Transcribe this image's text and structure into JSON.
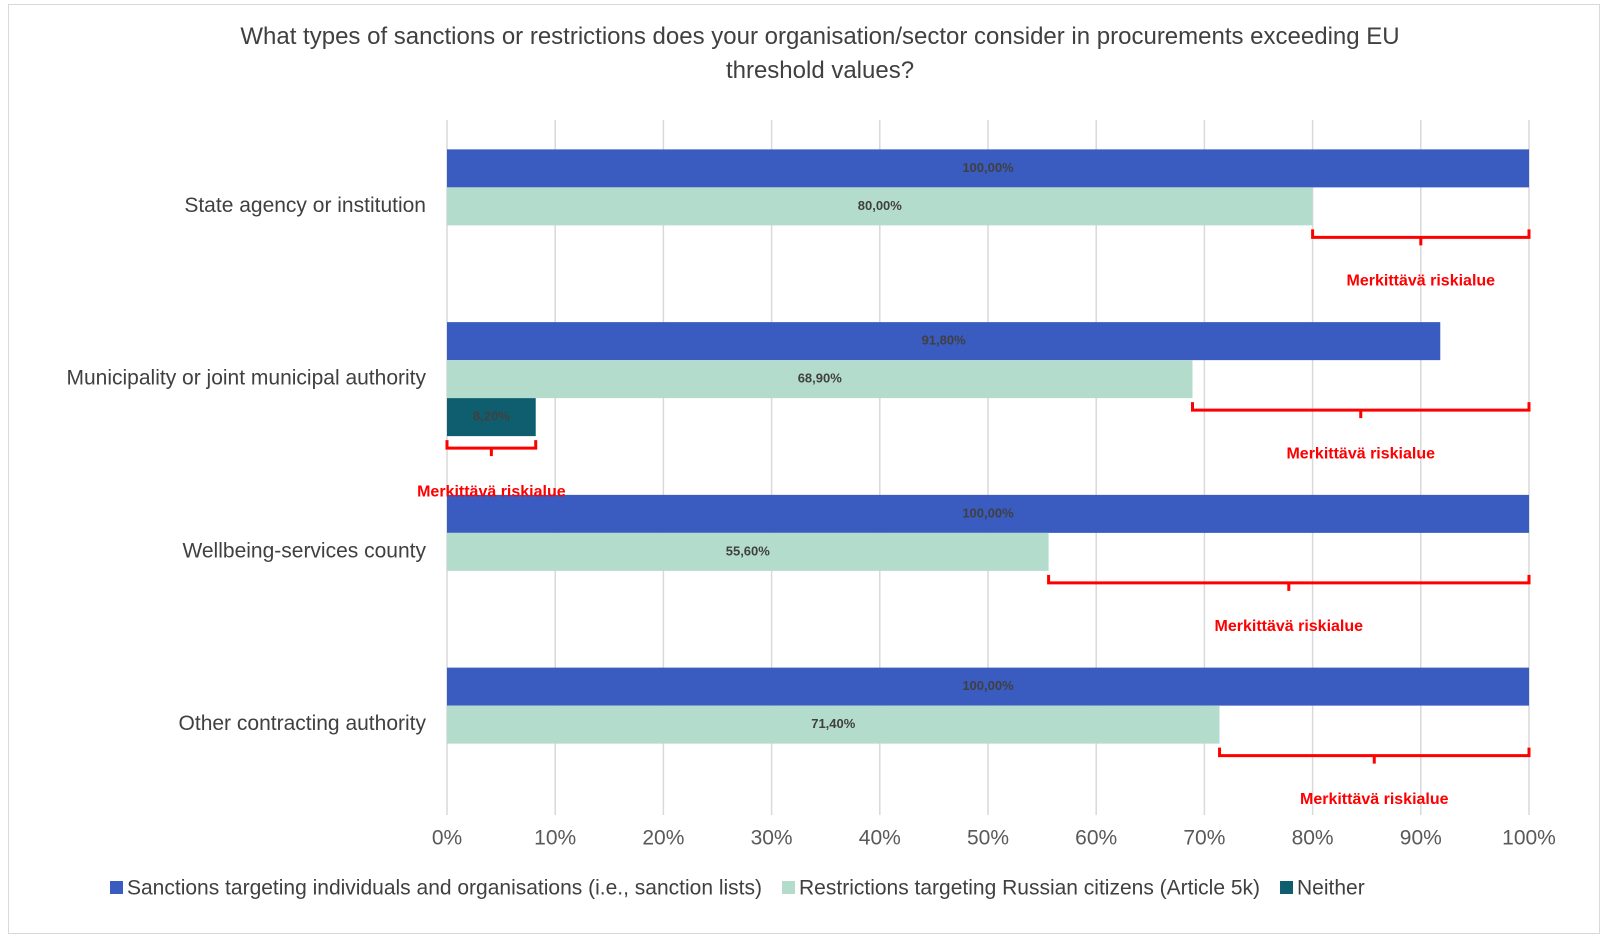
{
  "chart_data": {
    "type": "hbar",
    "title": "What types of sanctions or restrictions does your organisation/sector consider in procurements exceeding EU threshold values?",
    "categories": [
      "State agency or institution",
      "Municipality or joint municipal authority",
      "Wellbeing-services county",
      "Other contracting authority"
    ],
    "series": [
      {
        "name": "Sanctions targeting individuals and organisations (i.e., sanction lists)",
        "color": "#3a5bbf",
        "values": [
          100,
          91.8,
          100,
          100
        ],
        "value_labels": [
          "100,00%",
          "91,80%",
          "100,00%",
          "100,00%"
        ]
      },
      {
        "name": "Restrictions targeting Russian citizens (Article 5k)",
        "color": "#b4dccd",
        "values": [
          80,
          68.9,
          55.6,
          71.4
        ],
        "value_labels": [
          "80,00%",
          "68,90%",
          "55,60%",
          "71,40%"
        ]
      },
      {
        "name": "Neither",
        "color": "#0e5e6f",
        "values": [
          null,
          8.2,
          null,
          null
        ],
        "value_labels": [
          null,
          "8,20%",
          null,
          null
        ]
      }
    ],
    "xlim": [
      0,
      100
    ],
    "xticks": [
      {
        "value": 0,
        "label": "0%"
      },
      {
        "value": 10,
        "label": "10%"
      },
      {
        "value": 20,
        "label": "20%"
      },
      {
        "value": 30,
        "label": "30%"
      },
      {
        "value": 40,
        "label": "40%"
      },
      {
        "value": 50,
        "label": "50%"
      },
      {
        "value": 60,
        "label": "60%"
      },
      {
        "value": 70,
        "label": "70%"
      },
      {
        "value": 80,
        "label": "80%"
      },
      {
        "value": 90,
        "label": "90%"
      },
      {
        "value": 100,
        "label": "100%"
      }
    ],
    "grid": true,
    "legend": "bottom",
    "annotations": [
      {
        "text": "Merkittävä riskialue",
        "category": 0,
        "series": 1,
        "x": [
          80,
          100
        ]
      },
      {
        "text": "Merkittävä riskialue",
        "category": 1,
        "series": 1,
        "x": [
          68.9,
          100
        ]
      },
      {
        "text": "Merkittävä riskialue",
        "category": 1,
        "series": 2,
        "x": [
          0,
          8.2
        ]
      },
      {
        "text": "Merkittävä riskialue",
        "category": 2,
        "series": 1,
        "x": [
          55.6,
          100
        ]
      },
      {
        "text": "Merkittävä riskialue",
        "category": 3,
        "series": 1,
        "x": [
          71.4,
          100
        ]
      }
    ]
  }
}
